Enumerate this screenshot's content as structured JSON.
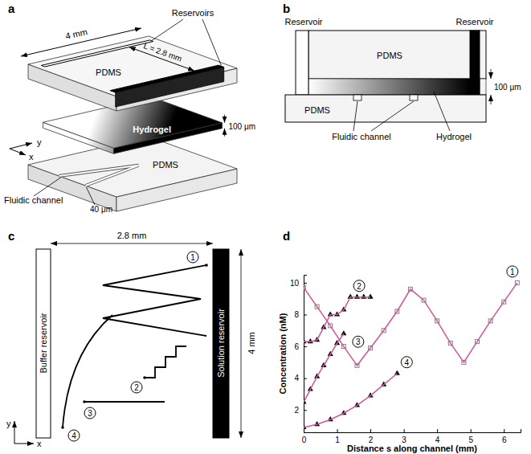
{
  "panel_a": {
    "letter": "a",
    "width_label": "4 mm",
    "reservoirs_label": "Reservoirs",
    "top_material": "PDMS",
    "length_label": "L = 2.8 mm",
    "y_axis": "y",
    "x_axis": "x",
    "hydrogel_label": "Hydrogel",
    "thickness_label": "100 μm",
    "channel_label": "Fluidic channel",
    "channel_width_label": "40 μm",
    "bottom_material": "PDMS"
  },
  "panel_b": {
    "letter": "b",
    "left_reservoir": "Reservoir",
    "right_reservoir": "Reservoir",
    "top_material": "PDMS",
    "thickness_label": "100 μm",
    "bottom_material": "PDMS",
    "channel_label": "Fluidic channel",
    "hydrogel_label": "Hydrogel"
  },
  "panel_c": {
    "letter": "c",
    "buffer_label": "Buffer reservoir",
    "solution_label": "Solution reservoir",
    "width_label": "2.8 mm",
    "height_label": "4 mm",
    "channel_labels": [
      "1",
      "2",
      "3",
      "4"
    ],
    "y_axis": "y",
    "x_axis": "x"
  },
  "panel_d": {
    "letter": "d"
  },
  "chart_data": {
    "type": "line",
    "x_label": "Distance s along channel (mm)",
    "y_label": "Concentration (nM)",
    "xlim": [
      0,
      6.5
    ],
    "ylim": [
      0.6,
      10.5
    ],
    "xticks": [
      0,
      1,
      2,
      3,
      4,
      5,
      6
    ],
    "yticks": [
      2,
      4,
      6,
      8,
      10
    ],
    "series": [
      {
        "name": "1",
        "color": "#808080",
        "marker": "square",
        "line_style": "solid",
        "x": [
          0,
          0.4,
          0.8,
          1.2,
          1.6,
          2.0,
          2.4,
          2.8,
          3.2,
          3.6,
          4.0,
          4.4,
          4.8,
          5.2,
          5.6,
          6.0,
          6.4
        ],
        "values": [
          9.7,
          8.5,
          7.3,
          6.0,
          4.8,
          5.9,
          7.0,
          8.2,
          9.6,
          8.9,
          7.6,
          6.2,
          5.0,
          6.3,
          7.6,
          8.8,
          10.0
        ]
      },
      {
        "name": "2",
        "color": "#000000",
        "marker": "triangle",
        "line_style": "solid",
        "x": [
          0,
          0.2,
          0.4,
          0.6,
          0.8,
          1.0,
          1.2,
          1.4,
          1.6,
          1.8,
          2.0
        ],
        "values": [
          6.3,
          6.3,
          6.4,
          7.2,
          8.0,
          8.0,
          8.3,
          9.1,
          9.1,
          9.1,
          9.1
        ]
      },
      {
        "name": "3",
        "color": "#000000",
        "marker": "triangle",
        "line_style": "solid",
        "x": [
          0,
          0.2,
          0.4,
          0.6,
          0.8,
          1.0,
          1.2
        ],
        "values": [
          2.5,
          3.3,
          4.1,
          4.8,
          5.5,
          6.2,
          6.8
        ]
      },
      {
        "name": "4",
        "color": "#000000",
        "marker": "triangle",
        "line_style": "solid",
        "x": [
          0,
          0.4,
          0.8,
          1.2,
          1.6,
          2.0,
          2.4,
          2.8
        ],
        "values": [
          0.9,
          1.1,
          1.4,
          1.8,
          2.3,
          2.9,
          3.6,
          4.3
        ]
      }
    ]
  }
}
